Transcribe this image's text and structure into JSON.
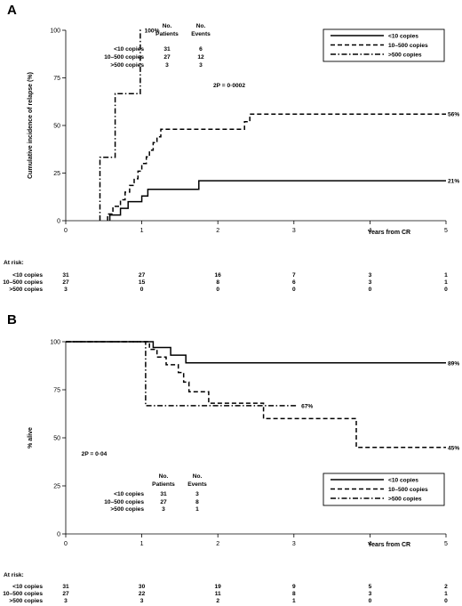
{
  "chart_data": [
    {
      "type": "line",
      "panel_label": "A",
      "ylabel": "Cumulative incidence of relapse (%)",
      "xlabel": "Years from CR",
      "xlim": [
        0,
        5
      ],
      "ylim": [
        0,
        100
      ],
      "x_ticks": [
        "0",
        "1",
        "2",
        "3",
        "4",
        "5"
      ],
      "y_ticks": [
        "0",
        "25",
        "50",
        "75",
        "100"
      ],
      "grid": false,
      "legend_position": "top-right",
      "stat_text": "2P = 0·0002",
      "patients_header": [
        "No.",
        "Patients"
      ],
      "events_header": [
        "No.",
        "Events"
      ],
      "series": [
        {
          "name": "<10 copies",
          "dash": "solid",
          "patients": "31",
          "events": "6",
          "end_label": "21%",
          "points": [
            [
              0.58,
              0
            ],
            [
              0.58,
              3
            ],
            [
              0.72,
              3
            ],
            [
              0.72,
              6.5
            ],
            [
              0.82,
              6.5
            ],
            [
              0.82,
              10
            ],
            [
              1.0,
              10
            ],
            [
              1.0,
              13
            ],
            [
              1.08,
              13
            ],
            [
              1.08,
              16.5
            ],
            [
              1.75,
              16.5
            ],
            [
              1.75,
              21
            ],
            [
              5,
              21
            ]
          ],
          "at_risk": [
            "31",
            "27",
            "16",
            "7",
            "3",
            "1"
          ]
        },
        {
          "name": "10–500 copies",
          "dash": "dashed",
          "patients": "27",
          "events": "12",
          "end_label": "56%",
          "points": [
            [
              0.55,
              0
            ],
            [
              0.55,
              3.5
            ],
            [
              0.62,
              3.5
            ],
            [
              0.62,
              7.5
            ],
            [
              0.72,
              7.5
            ],
            [
              0.72,
              11
            ],
            [
              0.78,
              11
            ],
            [
              0.78,
              15
            ],
            [
              0.84,
              15
            ],
            [
              0.84,
              18.5
            ],
            [
              0.9,
              18.5
            ],
            [
              0.9,
              22
            ],
            [
              0.95,
              22
            ],
            [
              0.95,
              26
            ],
            [
              1.0,
              26
            ],
            [
              1.0,
              30
            ],
            [
              1.06,
              30
            ],
            [
              1.06,
              33.5
            ],
            [
              1.1,
              33.5
            ],
            [
              1.1,
              37
            ],
            [
              1.15,
              37
            ],
            [
              1.15,
              41
            ],
            [
              1.2,
              41
            ],
            [
              1.2,
              44
            ],
            [
              1.25,
              44
            ],
            [
              1.25,
              48
            ],
            [
              2.35,
              48
            ],
            [
              2.35,
              52
            ],
            [
              2.42,
              52
            ],
            [
              2.42,
              56
            ],
            [
              5,
              56
            ]
          ],
          "at_risk": [
            "27",
            "15",
            "8",
            "6",
            "3",
            "1"
          ]
        },
        {
          "name": ">500 copies",
          "dash": "dashdot",
          "patients": "3",
          "events": "3",
          "end_label": "100%",
          "points": [
            [
              0.45,
              0
            ],
            [
              0.45,
              33.3
            ],
            [
              0.65,
              33.3
            ],
            [
              0.65,
              66.7
            ],
            [
              0.98,
              66.7
            ],
            [
              0.98,
              100
            ],
            [
              1.0,
              100
            ]
          ],
          "at_risk": [
            "3",
            "0",
            "0",
            "0",
            "0",
            "0"
          ]
        }
      ]
    },
    {
      "type": "line",
      "panel_label": "B",
      "ylabel": "% alive",
      "xlabel": "Years from CR",
      "xlim": [
        0,
        5
      ],
      "ylim": [
        0,
        100
      ],
      "x_ticks": [
        "0",
        "1",
        "2",
        "3",
        "4",
        "5"
      ],
      "y_ticks": [
        "0",
        "25",
        "50",
        "75",
        "100"
      ],
      "grid": false,
      "legend_position": "bottom-right",
      "stat_text": "2P = 0·04",
      "patients_header": [
        "No.",
        "Patients"
      ],
      "events_header": [
        "No.",
        "Events"
      ],
      "series": [
        {
          "name": "<10 copies",
          "dash": "solid",
          "patients": "31",
          "events": "3",
          "end_label": "89%",
          "points": [
            [
              0,
              100
            ],
            [
              1.15,
              100
            ],
            [
              1.15,
              97
            ],
            [
              1.38,
              97
            ],
            [
              1.38,
              93
            ],
            [
              1.58,
              93
            ],
            [
              1.58,
              89
            ],
            [
              5,
              89
            ]
          ],
          "at_risk": [
            "31",
            "30",
            "19",
            "9",
            "5",
            "2"
          ]
        },
        {
          "name": "10–500 copies",
          "dash": "dashed",
          "patients": "27",
          "events": "8",
          "end_label": "45%",
          "points": [
            [
              0,
              100
            ],
            [
              1.1,
              100
            ],
            [
              1.1,
              96
            ],
            [
              1.2,
              96
            ],
            [
              1.2,
              92
            ],
            [
              1.32,
              92
            ],
            [
              1.32,
              88
            ],
            [
              1.48,
              88
            ],
            [
              1.48,
              84
            ],
            [
              1.55,
              84
            ],
            [
              1.55,
              79
            ],
            [
              1.62,
              79
            ],
            [
              1.62,
              74
            ],
            [
              1.88,
              74
            ],
            [
              1.88,
              68
            ],
            [
              2.6,
              68
            ],
            [
              2.6,
              60
            ],
            [
              3.82,
              60
            ],
            [
              3.82,
              45
            ],
            [
              5,
              45
            ]
          ],
          "at_risk": [
            "27",
            "22",
            "11",
            "8",
            "3",
            "1"
          ]
        },
        {
          "name": ">500 copies",
          "dash": "dashdot",
          "patients": "3",
          "events": "1",
          "end_label": "67%",
          "points": [
            [
              0,
              100
            ],
            [
              1.05,
              100
            ],
            [
              1.05,
              66.7
            ],
            [
              3.05,
              66.7
            ]
          ],
          "at_risk": [
            "3",
            "3",
            "2",
            "1",
            "0",
            "0"
          ]
        }
      ]
    }
  ],
  "at_risk_label": "At risk:"
}
